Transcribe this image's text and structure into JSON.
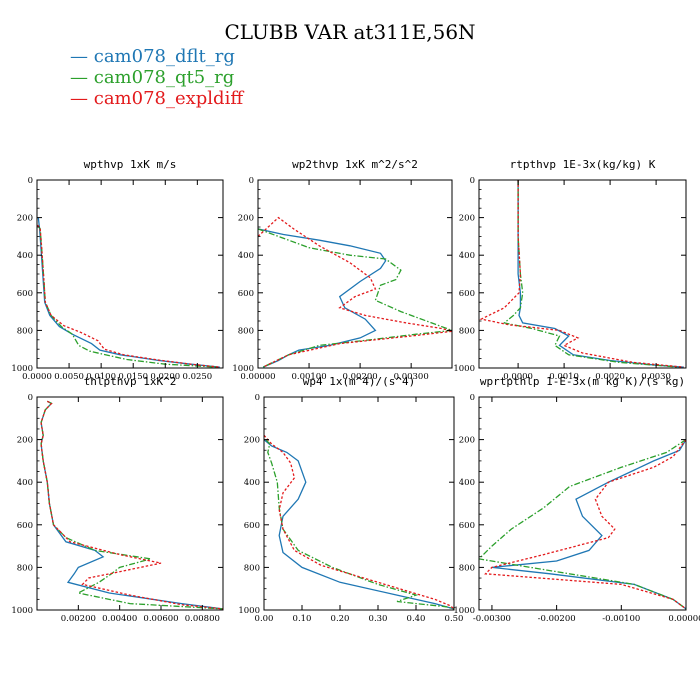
{
  "title": "CLUBB VAR at311E,56N",
  "legend": [
    {
      "label": "cam078_dflt_rg",
      "color": "#1f77b4"
    },
    {
      "label": "cam078_qt5_rg",
      "color": "#2ca02c"
    },
    {
      "label": "cam078_expldiff",
      "color": "#e31a1c"
    }
  ],
  "chart_data": [
    {
      "type": "line",
      "title": "wpthvp  1xK m/s",
      "xlim": [
        0,
        0.029
      ],
      "ylim": [
        1000,
        0
      ],
      "xticks": [
        0,
        0.005,
        0.01,
        0.015,
        0.02,
        0.025
      ],
      "xtick_labels": [
        "0.0000",
        "0.0050",
        "0.0100",
        "0.0150",
        "0.0200",
        "0.0250"
      ],
      "yticks": [
        0,
        200,
        400,
        600,
        800,
        1000
      ],
      "ytick_labels": [
        "0",
        "200",
        "400",
        "600",
        "800",
        "1000"
      ],
      "series": [
        {
          "name": "cam078_dflt_rg",
          "x": [
            0.0002,
            0.0004,
            0.0006,
            0.0008,
            0.001,
            0.0012,
            0.002,
            0.0035,
            0.0055,
            0.0085,
            0.0098,
            0.013,
            0.019,
            0.024,
            0.0285
          ],
          "y": [
            200,
            260,
            350,
            450,
            550,
            650,
            720,
            780,
            820,
            870,
            905,
            930,
            960,
            980,
            995
          ]
        },
        {
          "name": "cam078_qt5_rg",
          "x": [
            0.0001,
            0.0005,
            0.0007,
            0.0009,
            0.0011,
            0.0013,
            0.0022,
            0.0038,
            0.0055,
            0.0065,
            0.0082,
            0.0105,
            0.014,
            0.02,
            0.0282
          ],
          "y": [
            240,
            260,
            350,
            450,
            550,
            650,
            720,
            780,
            820,
            880,
            910,
            928,
            955,
            980,
            995
          ]
        },
        {
          "name": "cam078_expldiff",
          "x": [
            0.0001,
            0.0005,
            0.0007,
            0.0009,
            0.0011,
            0.0013,
            0.0022,
            0.0042,
            0.0068,
            0.0095,
            0.0105,
            0.0135,
            0.019,
            0.024,
            0.0284
          ],
          "y": [
            240,
            260,
            350,
            450,
            550,
            650,
            720,
            775,
            810,
            855,
            900,
            930,
            958,
            980,
            995
          ]
        }
      ]
    },
    {
      "type": "line",
      "title": "wp2thvp  1xK m^2/s^2",
      "xlim": [
        0,
        0.0038
      ],
      "ylim": [
        1000,
        0
      ],
      "xticks": [
        0,
        0.001,
        0.002,
        0.003
      ],
      "xtick_labels": [
        "0.00000",
        "0.00100",
        "0.00200",
        "0.00300"
      ],
      "yticks": [
        0,
        200,
        400,
        600,
        800,
        1000
      ],
      "ytick_labels": [
        "0",
        "200",
        "400",
        "600",
        "800",
        "1000"
      ],
      "series": [
        {
          "name": "cam078_dflt_rg",
          "x": [
            0,
            0.0005,
            0.0012,
            0.0018,
            0.0024,
            0.0025,
            0.0024,
            0.002,
            0.0016,
            0.0017,
            0.0021,
            0.0023,
            0.002,
            0.0014,
            0.0008,
            0.0006,
            0.0004,
            0.0001
          ],
          "y": [
            260,
            290,
            320,
            350,
            390,
            430,
            470,
            540,
            620,
            680,
            740,
            800,
            840,
            880,
            905,
            930,
            960,
            995
          ]
        },
        {
          "name": "cam078_qt5_rg",
          "x": [
            0,
            0.0004,
            0.001,
            0.0018,
            0.0025,
            0.0028,
            0.0027,
            0.0024,
            0.0023,
            0.0028,
            0.0034,
            0.0038,
            0.0031,
            0.0022,
            0.0012,
            0.0006,
            0.0001
          ],
          "y": [
            260,
            300,
            360,
            400,
            420,
            480,
            530,
            560,
            640,
            700,
            760,
            800,
            820,
            850,
            880,
            930,
            995
          ]
        },
        {
          "name": "cam078_expldiff",
          "x": [
            0,
            0.0004,
            0.0007,
            0.0012,
            0.0018,
            0.0022,
            0.0023,
            0.0019,
            0.0016,
            0.0021,
            0.0029,
            0.0036,
            0.0038,
            0.003,
            0.0016,
            0.0006,
            0.0001
          ],
          "y": [
            300,
            200,
            260,
            350,
            440,
            520,
            580,
            620,
            680,
            720,
            760,
            790,
            805,
            830,
            870,
            930,
            995
          ]
        }
      ]
    },
    {
      "type": "line",
      "title": "rtpthvp  1E-3x(kg/kg) K",
      "xlim": [
        -0.00085,
        0.00365
      ],
      "ylim": [
        1000,
        0
      ],
      "xticks": [
        0,
        0.001,
        0.002,
        0.003
      ],
      "xtick_labels": [
        "0.0000",
        "0.0010",
        "0.0020",
        "0.0030"
      ],
      "yticks": [
        0,
        200,
        400,
        600,
        800,
        1000
      ],
      "ytick_labels": [
        "0",
        "200",
        "400",
        "600",
        "800",
        "1000"
      ],
      "series": [
        {
          "name": "cam078_dflt_rg",
          "x": [
            0,
            0,
            0,
            5e-05,
            5e-05,
            2e-05,
            0.0001,
            0.0008,
            0.0011,
            0.0009,
            0.0012,
            0.002,
            0.003,
            0.0036
          ],
          "y": [
            0,
            300,
            500,
            600,
            680,
            720,
            760,
            790,
            830,
            880,
            930,
            960,
            985,
            995
          ]
        },
        {
          "name": "cam078_qt5_rg",
          "x": [
            0,
            0,
            5e-05,
            0.0001,
            5e-05,
            -0.0001,
            -0.0003,
            0.0003,
            0.0009,
            0.0008,
            0.0011,
            0.0022,
            0.0035
          ],
          "y": [
            0,
            300,
            500,
            600,
            680,
            720,
            760,
            790,
            830,
            880,
            930,
            970,
            995
          ]
        },
        {
          "name": "cam078_expldiff",
          "x": [
            0,
            0,
            5e-05,
            2e-05,
            -0.0003,
            -0.0008,
            -0.0002,
            0.0009,
            0.0013,
            0.001,
            0.0014,
            0.0025,
            0.0036
          ],
          "y": [
            0,
            300,
            500,
            600,
            680,
            740,
            770,
            800,
            840,
            880,
            920,
            970,
            995
          ]
        }
      ]
    },
    {
      "type": "line",
      "title": "thlpthvp  1xK^2",
      "xlim": [
        0,
        0.009
      ],
      "ylim": [
        1000,
        0
      ],
      "xticks": [
        0.002,
        0.004,
        0.006,
        0.008
      ],
      "xtick_labels": [
        "0.00200",
        "0.00400",
        "0.00600",
        "0.00800"
      ],
      "yticks": [
        0,
        200,
        400,
        600,
        800,
        1000
      ],
      "ytick_labels": [
        "0",
        "200",
        "400",
        "600",
        "800",
        "1000"
      ],
      "series": [
        {
          "name": "cam078_dflt_rg",
          "x": [
            0.0005,
            0.0007,
            0.0004,
            0.0002,
            0.0003,
            0.0002,
            0.0003,
            0.0005,
            0.0006,
            0.0008,
            0.0014,
            0.0028,
            0.0032,
            0.002,
            0.0018,
            0.0015,
            0.0035,
            0.007,
            0.009
          ],
          "y": [
            20,
            30,
            60,
            120,
            180,
            220,
            300,
            400,
            500,
            600,
            680,
            720,
            750,
            800,
            830,
            870,
            920,
            970,
            995
          ]
        },
        {
          "name": "cam078_qt5_rg",
          "x": [
            0.0005,
            0.0007,
            0.0004,
            0.0002,
            0.0003,
            0.0002,
            0.0003,
            0.0005,
            0.0006,
            0.0008,
            0.0014,
            0.0028,
            0.0055,
            0.004,
            0.0036,
            0.003,
            0.002,
            0.0045,
            0.009
          ],
          "y": [
            20,
            30,
            60,
            120,
            180,
            220,
            300,
            400,
            500,
            600,
            660,
            720,
            760,
            800,
            830,
            870,
            920,
            970,
            995
          ]
        },
        {
          "name": "cam078_expldiff",
          "x": [
            0.0005,
            0.0007,
            0.0004,
            0.0002,
            0.0003,
            0.0002,
            0.0003,
            0.0005,
            0.0006,
            0.0008,
            0.0016,
            0.004,
            0.006,
            0.004,
            0.0025,
            0.0022,
            0.0045,
            0.007,
            0.009
          ],
          "y": [
            20,
            30,
            60,
            120,
            180,
            220,
            300,
            400,
            500,
            600,
            680,
            740,
            780,
            820,
            850,
            880,
            930,
            975,
            995
          ]
        }
      ]
    },
    {
      "type": "line",
      "title": "wp4  1x(m^4)/(s^4)",
      "xlim": [
        0,
        0.5
      ],
      "ylim": [
        1000,
        0
      ],
      "xticks": [
        0,
        0.1,
        0.2,
        0.3,
        0.4,
        0.5
      ],
      "xtick_labels": [
        "0.00",
        "0.10",
        "0.20",
        "0.30",
        "0.40",
        "0.50"
      ],
      "yticks": [
        0,
        200,
        400,
        600,
        800,
        1000
      ],
      "ytick_labels": [
        "0",
        "200",
        "400",
        "600",
        "800",
        "1000"
      ],
      "series": [
        {
          "name": "cam078_dflt_rg",
          "x": [
            0,
            0.02,
            0.06,
            0.09,
            0.11,
            0.09,
            0.05,
            0.04,
            0.05,
            0.1,
            0.2,
            0.35,
            0.45,
            0.5
          ],
          "y": [
            200,
            230,
            260,
            300,
            400,
            480,
            560,
            650,
            730,
            800,
            870,
            930,
            970,
            995
          ]
        },
        {
          "name": "cam078_qt5_rg",
          "x": [
            0.005,
            0.015,
            0.01,
            0.02,
            0.035,
            0.04,
            0.05,
            0.09,
            0.18,
            0.3,
            0.4,
            0.35,
            0.48,
            0.5
          ],
          "y": [
            200,
            220,
            260,
            310,
            400,
            520,
            620,
            720,
            800,
            880,
            930,
            960,
            985,
            995
          ]
        },
        {
          "name": "cam078_expldiff",
          "x": [
            0,
            0.02,
            0.05,
            0.07,
            0.08,
            0.05,
            0.04,
            0.05,
            0.08,
            0.15,
            0.3,
            0.45,
            0.49,
            0.5
          ],
          "y": [
            180,
            220,
            260,
            310,
            380,
            450,
            530,
            620,
            720,
            790,
            870,
            950,
            980,
            995
          ]
        }
      ]
    },
    {
      "type": "line",
      "title": "wprtpthlp  1-E-3x(m kg K)/(s kg)",
      "xlim": [
        -0.0032,
        0
      ],
      "ylim": [
        1000,
        0
      ],
      "xticks": [
        -0.003,
        -0.002,
        -0.001,
        0
      ],
      "xtick_labels": [
        "-0.00300",
        "-0.00200",
        "-0.00100",
        "0.00000"
      ],
      "yticks": [
        0,
        200,
        400,
        600,
        800,
        1000
      ],
      "ytick_labels": [
        "0",
        "200",
        "400",
        "600",
        "800",
        "1000"
      ],
      "series": [
        {
          "name": "cam078_dflt_rg",
          "x": [
            0,
            -0.0001,
            -0.0005,
            -0.0012,
            -0.0017,
            -0.0016,
            -0.0013,
            -0.0015,
            -0.002,
            -0.003,
            -0.0021,
            -0.0008,
            -0.0002,
            0
          ],
          "y": [
            200,
            250,
            300,
            400,
            480,
            560,
            650,
            720,
            770,
            800,
            830,
            880,
            950,
            995
          ]
        },
        {
          "name": "cam078_qt5_rg",
          "x": [
            0,
            -0.0003,
            -0.001,
            -0.0018,
            -0.0022,
            -0.0027,
            -0.003,
            -0.0032,
            -0.002,
            -0.0008,
            -0.0002,
            0
          ],
          "y": [
            200,
            260,
            330,
            420,
            520,
            620,
            700,
            760,
            820,
            880,
            950,
            995
          ]
        },
        {
          "name": "cam078_expldiff",
          "x": [
            0,
            -0.0002,
            -0.0005,
            -0.0012,
            -0.0014,
            -0.0013,
            -0.0011,
            -0.0012,
            -0.0022,
            -0.003,
            -0.0031,
            -0.001,
            -0.0002,
            0
          ],
          "y": [
            200,
            280,
            330,
            400,
            480,
            560,
            620,
            660,
            740,
            800,
            830,
            880,
            950,
            995
          ]
        }
      ]
    }
  ]
}
